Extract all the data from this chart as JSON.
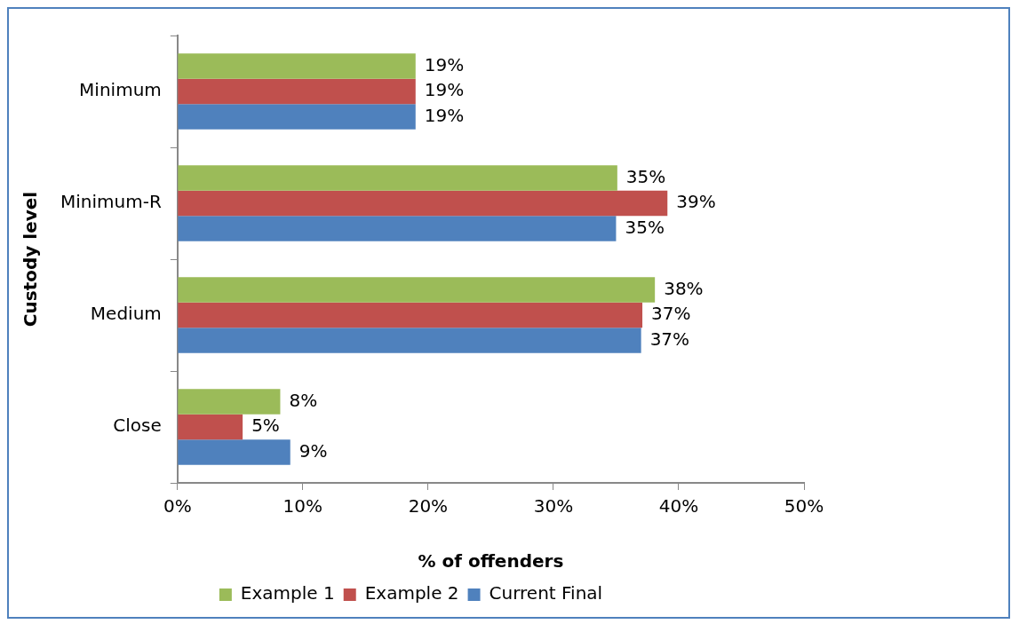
{
  "chart_data": {
    "type": "bar",
    "orientation": "horizontal",
    "xlabel": "% of offenders",
    "ylabel": "Custody level",
    "categories": [
      "Minimum",
      "Minimum-R",
      "Medium",
      "Close"
    ],
    "series": [
      {
        "name": "Example 1",
        "color": "#9bbb59",
        "values": [
          19,
          35.1,
          38.1,
          8.2
        ],
        "value_labels": [
          "19%",
          "35%",
          "38%",
          "8%"
        ]
      },
      {
        "name": "Example 2",
        "color": "#c0504d",
        "values": [
          19,
          39.1,
          37.1,
          5.2
        ],
        "value_labels": [
          "19%",
          "39%",
          "37%",
          "5%"
        ]
      },
      {
        "name": "Current Final",
        "color": "#4f81bd",
        "values": [
          19,
          35,
          37,
          9
        ],
        "value_labels": [
          "19%",
          "35%",
          "37%",
          "9%"
        ]
      }
    ],
    "xlim": [
      0,
      50
    ],
    "xticks": [
      {
        "value": 0,
        "label": "0%"
      },
      {
        "value": 10,
        "label": "10%"
      },
      {
        "value": 20,
        "label": "20%"
      },
      {
        "value": 30,
        "label": "30%"
      },
      {
        "value": 40,
        "label": "40%"
      },
      {
        "value": 50,
        "label": "50%"
      }
    ],
    "grid": false,
    "legend": "bottom"
  }
}
